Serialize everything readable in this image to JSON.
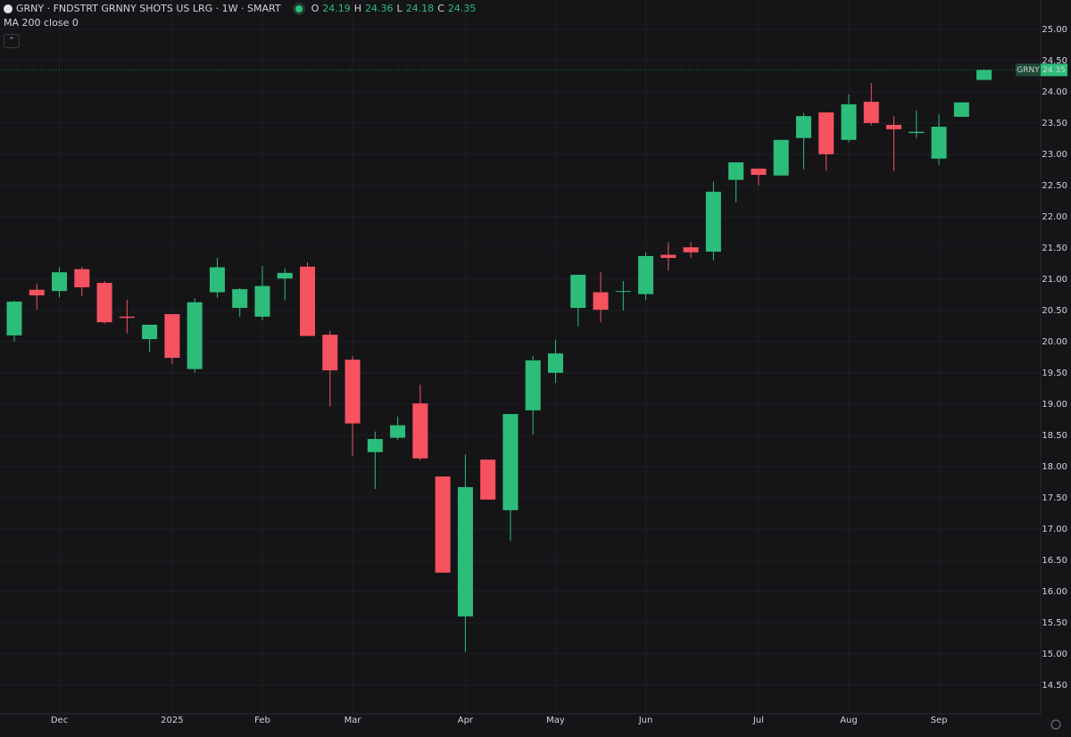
{
  "chart_data": {
    "type": "candlestick",
    "title": "GRNY · FNDSTRT GRNNY SHOTS US LRG · 1W · SMART",
    "ohlc_letters": [
      "O",
      "H",
      "L",
      "C"
    ],
    "indicator": "MA 200 close 0",
    "price_tag_label": "GRNY",
    "up_color": "#2dbd7a",
    "down_color": "#f7525f",
    "grid": true,
    "categories": [
      null,
      null,
      "Dec",
      null,
      null,
      null,
      null,
      "2025",
      null,
      null,
      null,
      "Feb",
      null,
      null,
      null,
      "Mar",
      null,
      null,
      null,
      null,
      "Apr",
      null,
      null,
      null,
      "May",
      null,
      null,
      null,
      "Jun",
      null,
      null,
      null,
      null,
      "Jul",
      null,
      null,
      null,
      "Aug",
      null,
      null,
      null,
      "Sep",
      null,
      null
    ],
    "open": [
      20.1,
      20.83,
      20.81,
      21.16,
      20.94,
      20.4,
      20.04,
      20.44,
      19.56,
      20.79,
      20.54,
      20.4,
      21.01,
      21.2,
      20.11,
      19.71,
      18.23,
      18.46,
      19.01,
      17.84,
      15.6,
      18.11,
      17.3,
      18.9,
      19.5,
      20.54,
      20.79,
      20.8,
      20.76,
      21.39,
      21.51,
      21.44,
      22.59,
      22.77,
      22.66,
      23.26,
      23.67,
      23.23,
      23.84,
      23.47,
      23.34,
      22.93,
      23.6,
      24.19
    ],
    "high": [
      20.66,
      20.93,
      21.19,
      21.2,
      20.97,
      20.67,
      20.27,
      20.44,
      20.69,
      21.34,
      20.86,
      21.21,
      21.17,
      21.27,
      20.17,
      19.77,
      18.56,
      18.8,
      19.31,
      17.84,
      18.19,
      18.11,
      18.84,
      19.77,
      20.03,
      21.07,
      21.11,
      20.97,
      21.43,
      21.59,
      21.59,
      22.56,
      22.87,
      22.77,
      23.23,
      23.66,
      23.67,
      23.96,
      24.14,
      23.61,
      23.7,
      23.64,
      23.83,
      24.36
    ],
    "low": [
      20.0,
      20.51,
      20.71,
      20.73,
      20.28,
      20.13,
      19.83,
      19.64,
      19.5,
      20.7,
      20.4,
      20.34,
      20.66,
      20.09,
      18.96,
      18.17,
      17.64,
      18.43,
      18.1,
      16.3,
      15.03,
      17.47,
      16.81,
      18.51,
      19.34,
      20.24,
      20.31,
      20.5,
      20.66,
      21.14,
      21.34,
      21.3,
      22.23,
      22.5,
      22.66,
      22.76,
      22.74,
      23.19,
      23.46,
      22.73,
      23.26,
      22.83,
      23.6,
      24.18
    ],
    "close": [
      20.64,
      20.74,
      21.11,
      20.87,
      20.31,
      20.38,
      20.27,
      19.74,
      20.63,
      21.19,
      20.84,
      20.89,
      21.1,
      20.09,
      19.54,
      18.69,
      18.44,
      18.66,
      18.13,
      16.3,
      17.67,
      17.47,
      18.84,
      19.7,
      19.81,
      21.07,
      20.51,
      20.81,
      21.37,
      21.34,
      21.43,
      22.4,
      22.87,
      22.67,
      23.23,
      23.61,
      23.0,
      23.8,
      23.5,
      23.4,
      23.36,
      23.44,
      23.83,
      24.35
    ],
    "ylim": [
      14.04,
      25.47
    ],
    "yticks": [
      {
        "value": 14.5,
        "label": "14.50"
      },
      {
        "value": 15,
        "label": "15.00"
      },
      {
        "value": 15.5,
        "label": "15.50"
      },
      {
        "value": 16,
        "label": "16.00"
      },
      {
        "value": 16.5,
        "label": "16.50"
      },
      {
        "value": 17,
        "label": "17.00"
      },
      {
        "value": 17.5,
        "label": "17.50"
      },
      {
        "value": 18,
        "label": "18.00"
      },
      {
        "value": 18.5,
        "label": "18.50"
      },
      {
        "value": 19,
        "label": "19.00"
      },
      {
        "value": 19.5,
        "label": "19.50"
      },
      {
        "value": 20,
        "label": "20.00"
      },
      {
        "value": 20.5,
        "label": "20.50"
      },
      {
        "value": 21,
        "label": "21.00"
      },
      {
        "value": 21.5,
        "label": "21.50"
      },
      {
        "value": 22,
        "label": "22.00"
      },
      {
        "value": 22.5,
        "label": "22.50"
      },
      {
        "value": 23,
        "label": "23.00"
      },
      {
        "value": 23.5,
        "label": "23.50"
      },
      {
        "value": 24,
        "label": "24.00"
      },
      {
        "value": 24.5,
        "label": "24.50"
      },
      {
        "value": 25,
        "label": "25.00"
      }
    ]
  }
}
